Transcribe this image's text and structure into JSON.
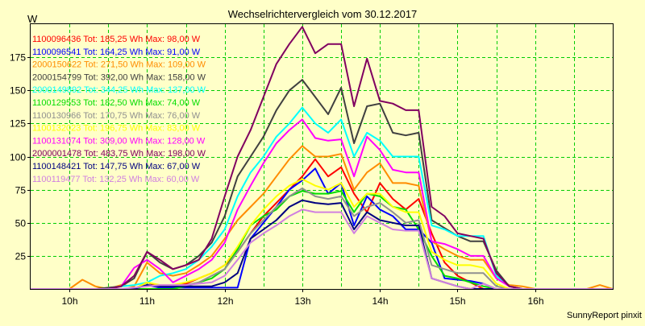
{
  "chart_data": {
    "type": "line",
    "title": "Wechselrichtervergleich vom 30.12.2017",
    "ylabel": "W",
    "footer": "SunnyReport pinxit",
    "ylim": [
      0,
      200
    ],
    "y_ticks": [
      25,
      50,
      75,
      100,
      125,
      150,
      175
    ],
    "x_range": [
      "09:30",
      "17:00"
    ],
    "x_ticks": [
      "10h",
      "11h",
      "12h",
      "13h",
      "14h",
      "15h",
      "16h"
    ],
    "grid": true,
    "x": [
      "09:30",
      "09:40",
      "09:50",
      "10:00",
      "10:10",
      "10:20",
      "10:30",
      "10:40",
      "10:50",
      "11:00",
      "11:10",
      "11:20",
      "11:30",
      "11:40",
      "11:50",
      "12:00",
      "12:10",
      "12:20",
      "12:30",
      "12:40",
      "12:50",
      "13:00",
      "13:10",
      "13:20",
      "13:30",
      "13:40",
      "13:50",
      "14:00",
      "14:10",
      "14:20",
      "14:30",
      "14:40",
      "14:50",
      "15:00",
      "15:10",
      "15:20",
      "15:30",
      "15:40",
      "15:50",
      "16:00",
      "16:10",
      "16:20",
      "16:30",
      "16:40",
      "16:50",
      "17:00"
    ],
    "series": [
      {
        "name": "1100096436",
        "legend": "1100096436 Tot: 185,25 Wh Max: 98,00 W",
        "color": "#ff0000",
        "values": [
          0,
          0,
          0,
          0,
          0,
          0,
          0,
          0,
          0,
          5,
          2,
          2,
          4,
          8,
          12,
          18,
          28,
          42,
          55,
          65,
          75,
          85,
          98,
          85,
          92,
          72,
          58,
          80,
          68,
          60,
          68,
          42,
          20,
          10,
          5,
          0,
          0,
          0,
          0,
          0,
          0,
          0,
          0,
          0,
          0,
          0
        ]
      },
      {
        "name": "1100096541",
        "legend": "1100096541 Tot: 164,25 Wh Max: 91,00 W",
        "color": "#0000ff",
        "values": [
          0,
          0,
          0,
          0,
          0,
          0,
          0,
          0,
          0,
          3,
          1,
          1,
          1,
          1,
          1,
          1,
          1,
          38,
          50,
          62,
          75,
          82,
          91,
          72,
          80,
          48,
          70,
          60,
          55,
          45,
          45,
          35,
          8,
          7,
          6,
          4,
          0,
          0,
          0,
          0,
          0,
          0,
          0,
          0,
          0,
          0
        ]
      },
      {
        "name": "2000150622",
        "legend": "2000150622 Tot: 271,50 Wh Max: 109,00 W",
        "color": "#ff8c00",
        "values": [
          0,
          0,
          0,
          0,
          7,
          2,
          0,
          3,
          2,
          20,
          12,
          10,
          12,
          18,
          25,
          38,
          52,
          62,
          72,
          85,
          98,
          108,
          100,
          100,
          102,
          75,
          88,
          95,
          80,
          80,
          78,
          36,
          30,
          25,
          22,
          22,
          8,
          3,
          2,
          0,
          0,
          0,
          0,
          0,
          3,
          0
        ]
      },
      {
        "name": "2000154799",
        "legend": "2000154799 Tot: 392,00 Wh Max: 158,00 W",
        "color": "#404040",
        "values": [
          0,
          0,
          0,
          0,
          0,
          0,
          1,
          2,
          8,
          28,
          20,
          15,
          18,
          25,
          35,
          55,
          85,
          100,
          115,
          135,
          150,
          158,
          145,
          132,
          152,
          110,
          138,
          140,
          118,
          116,
          118,
          52,
          46,
          40,
          36,
          36,
          14,
          2,
          0,
          0,
          0,
          0,
          0,
          0,
          0,
          0
        ]
      },
      {
        "name": "2000149892",
        "legend": "2000149892 Tot: 344,25 Wh Max: 137,00 W",
        "color": "#00ffff",
        "values": [
          0,
          0,
          0,
          0,
          0,
          0,
          0,
          2,
          3,
          5,
          10,
          12,
          15,
          22,
          32,
          45,
          70,
          88,
          100,
          115,
          125,
          137,
          125,
          118,
          128,
          100,
          118,
          112,
          100,
          100,
          100,
          48,
          45,
          40,
          40,
          40,
          10,
          2,
          0,
          0,
          0,
          0,
          0,
          0,
          0,
          0
        ]
      },
      {
        "name": "1100129553",
        "legend": "1100129553 Tot: 182,50 Wh Max: 74,00 W",
        "color": "#00dd00",
        "values": [
          0,
          0,
          0,
          0,
          0,
          0,
          0,
          0,
          0,
          0,
          0,
          0,
          2,
          5,
          8,
          15,
          30,
          48,
          55,
          60,
          70,
          74,
          72,
          72,
          74,
          58,
          72,
          70,
          62,
          60,
          45,
          25,
          10,
          8,
          5,
          2,
          0,
          0,
          0,
          0,
          0,
          0,
          0,
          0,
          0,
          0
        ]
      },
      {
        "name": "1100130966",
        "legend": "1100130966 Tot: 170,75 Wh Max: 76,00 W",
        "color": "#909090",
        "values": [
          0,
          0,
          0,
          0,
          0,
          0,
          0,
          0,
          0,
          3,
          2,
          2,
          3,
          5,
          10,
          15,
          28,
          42,
          52,
          62,
          70,
          76,
          70,
          68,
          70,
          55,
          62,
          65,
          58,
          50,
          52,
          18,
          15,
          12,
          12,
          12,
          2,
          0,
          0,
          0,
          0,
          0,
          0,
          0,
          0,
          0
        ]
      },
      {
        "name": "1100132023",
        "legend": "1100132023 Tot: 196,75 Wh Max: 83,00 W",
        "color": "#ffff00",
        "values": [
          0,
          0,
          0,
          0,
          0,
          0,
          0,
          0,
          0,
          5,
          3,
          3,
          5,
          8,
          12,
          18,
          32,
          48,
          60,
          70,
          78,
          83,
          78,
          75,
          80,
          62,
          72,
          72,
          62,
          58,
          58,
          28,
          22,
          18,
          18,
          16,
          4,
          0,
          0,
          0,
          0,
          0,
          0,
          0,
          0,
          0
        ]
      },
      {
        "name": "1100131074",
        "legend": "1100131074 Tot: 309,00 Wh Max: 128,00 W",
        "color": "#ff00ff",
        "values": [
          0,
          0,
          0,
          0,
          0,
          0,
          0,
          2,
          16,
          22,
          15,
          5,
          10,
          15,
          22,
          35,
          60,
          78,
          95,
          110,
          120,
          128,
          114,
          112,
          113,
          85,
          115,
          105,
          90,
          88,
          88,
          36,
          34,
          30,
          25,
          25,
          8,
          2,
          0,
          0,
          0,
          0,
          0,
          0,
          0,
          0
        ]
      },
      {
        "name": "2000001478",
        "legend": "2000001478 Tot: 483,75 Wh Max: 198,00 W",
        "color": "#800060",
        "values": [
          0,
          0,
          0,
          0,
          0,
          0,
          0,
          2,
          10,
          28,
          22,
          15,
          18,
          22,
          38,
          70,
          100,
          120,
          145,
          170,
          185,
          198,
          178,
          185,
          185,
          138,
          174,
          142,
          140,
          135,
          135,
          62,
          55,
          42,
          40,
          38,
          12,
          2,
          0,
          0,
          0,
          0,
          0,
          0,
          0,
          0
        ]
      },
      {
        "name": "1100148421",
        "legend": "1100148421 Tot: 147,75 Wh Max: 67,00 W",
        "color": "#000080",
        "values": [
          0,
          0,
          0,
          0,
          0,
          0,
          0,
          0,
          0,
          3,
          2,
          2,
          2,
          2,
          2,
          5,
          12,
          38,
          45,
          52,
          62,
          67,
          65,
          64,
          65,
          45,
          58,
          52,
          50,
          48,
          48,
          8,
          5,
          2,
          0,
          0,
          0,
          0,
          0,
          0,
          0,
          0,
          0,
          0,
          0,
          0
        ]
      },
      {
        "name": "1100119477",
        "legend": "1100119477 Tot: 132,25 Wh Max: 60,00 W",
        "color": "#d080e0",
        "values": [
          0,
          0,
          0,
          0,
          0,
          0,
          0,
          0,
          1,
          2,
          3,
          3,
          3,
          4,
          5,
          10,
          22,
          35,
          42,
          48,
          55,
          60,
          58,
          58,
          58,
          42,
          55,
          50,
          45,
          44,
          44,
          8,
          5,
          2,
          0,
          4,
          0,
          0,
          0,
          0,
          0,
          0,
          0,
          0,
          0,
          0
        ]
      }
    ]
  }
}
